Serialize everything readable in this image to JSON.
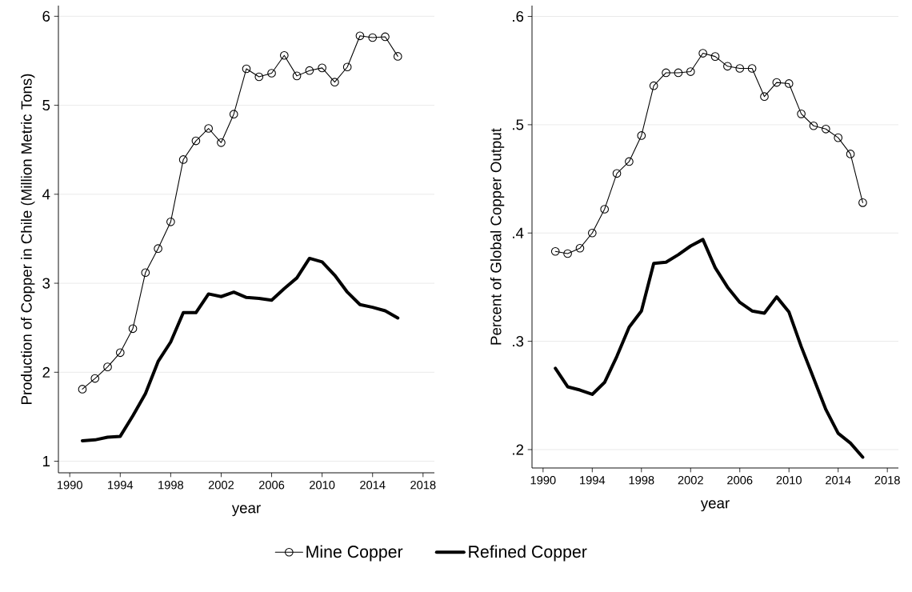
{
  "chart_data": [
    {
      "type": "line",
      "xlabel": "year",
      "ylabel": "Production of Copper in Chile (Million Metric Tons)",
      "xlim": [
        1989.1,
        2018.9
      ],
      "ylim": [
        0.87,
        6.12
      ],
      "xticks": [
        1990,
        1994,
        1998,
        2002,
        2006,
        2010,
        2014,
        2018
      ],
      "yticks": [
        1,
        2,
        3,
        4,
        5,
        6
      ],
      "grid": "y",
      "legend": "bottom",
      "x": [
        1991,
        1992,
        1993,
        1994,
        1995,
        1996,
        1997,
        1998,
        1999,
        2000,
        2001,
        2002,
        2003,
        2004,
        2005,
        2006,
        2007,
        2008,
        2009,
        2010,
        2011,
        2012,
        2013,
        2014,
        2015,
        2016
      ],
      "series": [
        {
          "name": "Mine Copper",
          "color": "#000000",
          "marker": "circle",
          "values": [
            1.81,
            1.93,
            2.06,
            2.22,
            2.49,
            3.12,
            3.39,
            3.69,
            4.39,
            4.6,
            4.74,
            4.58,
            4.9,
            5.41,
            5.32,
            5.36,
            5.56,
            5.33,
            5.39,
            5.42,
            5.26,
            5.43,
            5.78,
            5.76,
            5.77,
            5.55
          ]
        },
        {
          "name": "Refined Copper",
          "color": "#000000",
          "marker": "none",
          "values": [
            1.23,
            1.24,
            1.27,
            1.28,
            1.51,
            1.76,
            2.12,
            2.34,
            2.67,
            2.67,
            2.88,
            2.85,
            2.9,
            2.84,
            2.83,
            2.81,
            2.94,
            3.06,
            3.28,
            3.24,
            3.09,
            2.9,
            2.76,
            2.73,
            2.69,
            2.61
          ]
        }
      ]
    },
    {
      "type": "line",
      "xlabel": "year",
      "ylabel": "Percent of Global Copper Output",
      "xlim": [
        1989.1,
        2018.9
      ],
      "ylim": [
        0.183,
        0.61
      ],
      "xticks": [
        1990,
        1994,
        1998,
        2002,
        2006,
        2010,
        2014,
        2018
      ],
      "yticks": [
        {
          "value": 0.2,
          "label": ".2"
        },
        {
          "value": 0.3,
          "label": ".3"
        },
        {
          "value": 0.4,
          "label": ".4"
        },
        {
          "value": 0.5,
          "label": ".5"
        },
        {
          "value": 0.6,
          "label": ".6"
        }
      ],
      "grid": "y",
      "x": [
        1991,
        1992,
        1993,
        1994,
        1995,
        1996,
        1997,
        1998,
        1999,
        2000,
        2001,
        2002,
        2003,
        2004,
        2005,
        2006,
        2007,
        2008,
        2009,
        2010,
        2011,
        2012,
        2013,
        2014,
        2015,
        2016
      ],
      "series": [
        {
          "color": "#000000",
          "marker": "circle",
          "values": [
            0.383,
            0.381,
            0.386,
            0.4,
            0.422,
            0.455,
            0.466,
            0.49,
            0.536,
            0.548,
            0.548,
            0.549,
            0.566,
            0.563,
            0.554,
            0.552,
            0.552,
            0.526,
            0.539,
            0.538,
            0.51,
            0.499,
            0.496,
            0.488,
            0.473,
            0.428
          ]
        },
        {
          "color": "#000000",
          "marker": "none",
          "values": [
            0.275,
            0.258,
            0.255,
            0.251,
            0.262,
            0.286,
            0.313,
            0.328,
            0.372,
            0.373,
            0.38,
            0.388,
            0.394,
            0.368,
            0.35,
            0.336,
            0.328,
            0.326,
            0.341,
            0.327,
            0.295,
            0.266,
            0.237,
            0.215,
            0.206,
            0.193
          ]
        }
      ]
    }
  ]
}
